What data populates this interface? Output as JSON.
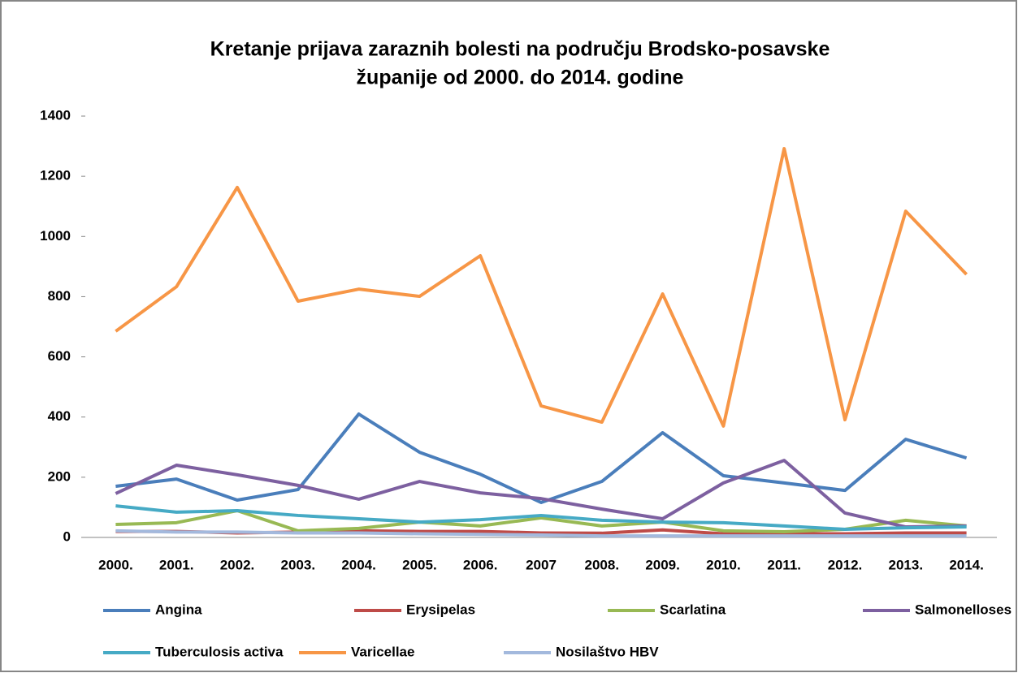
{
  "chart_data": {
    "type": "line",
    "title": [
      "Kretanje prijava zaraznih bolesti na području Brodsko-posavske",
      "županije  od 2000. do 2014. godine"
    ],
    "categories": [
      "2000.",
      "2001.",
      "2002.",
      "2003.",
      "2004.",
      "2005.",
      "2006.",
      "2007",
      "2008.",
      "2009.",
      "2010.",
      "2011.",
      "2012.",
      "2013.",
      "2014."
    ],
    "ylim": [
      0,
      1400
    ],
    "yticks": [
      0,
      200,
      400,
      600,
      800,
      1000,
      1200,
      1400
    ],
    "grid": false,
    "legend": "bottom",
    "series": [
      {
        "name": "Angina",
        "color": "#4a7ebb",
        "values": [
          170,
          194,
          124,
          159,
          410,
          283,
          210,
          116,
          186,
          348,
          205,
          181,
          156,
          326,
          264
        ]
      },
      {
        "name": "Erysipelas",
        "color": "#be4b48",
        "values": [
          20,
          20,
          15,
          18,
          22,
          20,
          20,
          15,
          14,
          25,
          12,
          12,
          12,
          15,
          15
        ]
      },
      {
        "name": "Scarlatina",
        "color": "#98b954",
        "values": [
          43,
          49,
          89,
          22,
          30,
          51,
          38,
          65,
          38,
          51,
          22,
          19,
          27,
          57,
          38
        ]
      },
      {
        "name": "Salmonelloses",
        "color": "#7d60a0",
        "values": [
          146,
          240,
          208,
          173,
          127,
          186,
          148,
          129,
          94,
          62,
          181,
          256,
          81,
          35,
          38
        ]
      },
      {
        "name": "Tuberculosis activa",
        "color": "#46aac5",
        "values": [
          105,
          84,
          89,
          73,
          62,
          51,
          59,
          73,
          57,
          51,
          49,
          38,
          27,
          32,
          35
        ]
      },
      {
        "name": "Varicellae",
        "color": "#f79646",
        "values": [
          685,
          833,
          1163,
          785,
          825,
          801,
          936,
          437,
          383,
          809,
          370,
          1292,
          391,
          1084,
          874
        ]
      },
      {
        "name": "Nosilaštvo HBV",
        "color": "#a3b9dd",
        "values": [
          22,
          18,
          18,
          15,
          15,
          12,
          10,
          8,
          5,
          5,
          5,
          5,
          5,
          5,
          5
        ]
      }
    ]
  }
}
